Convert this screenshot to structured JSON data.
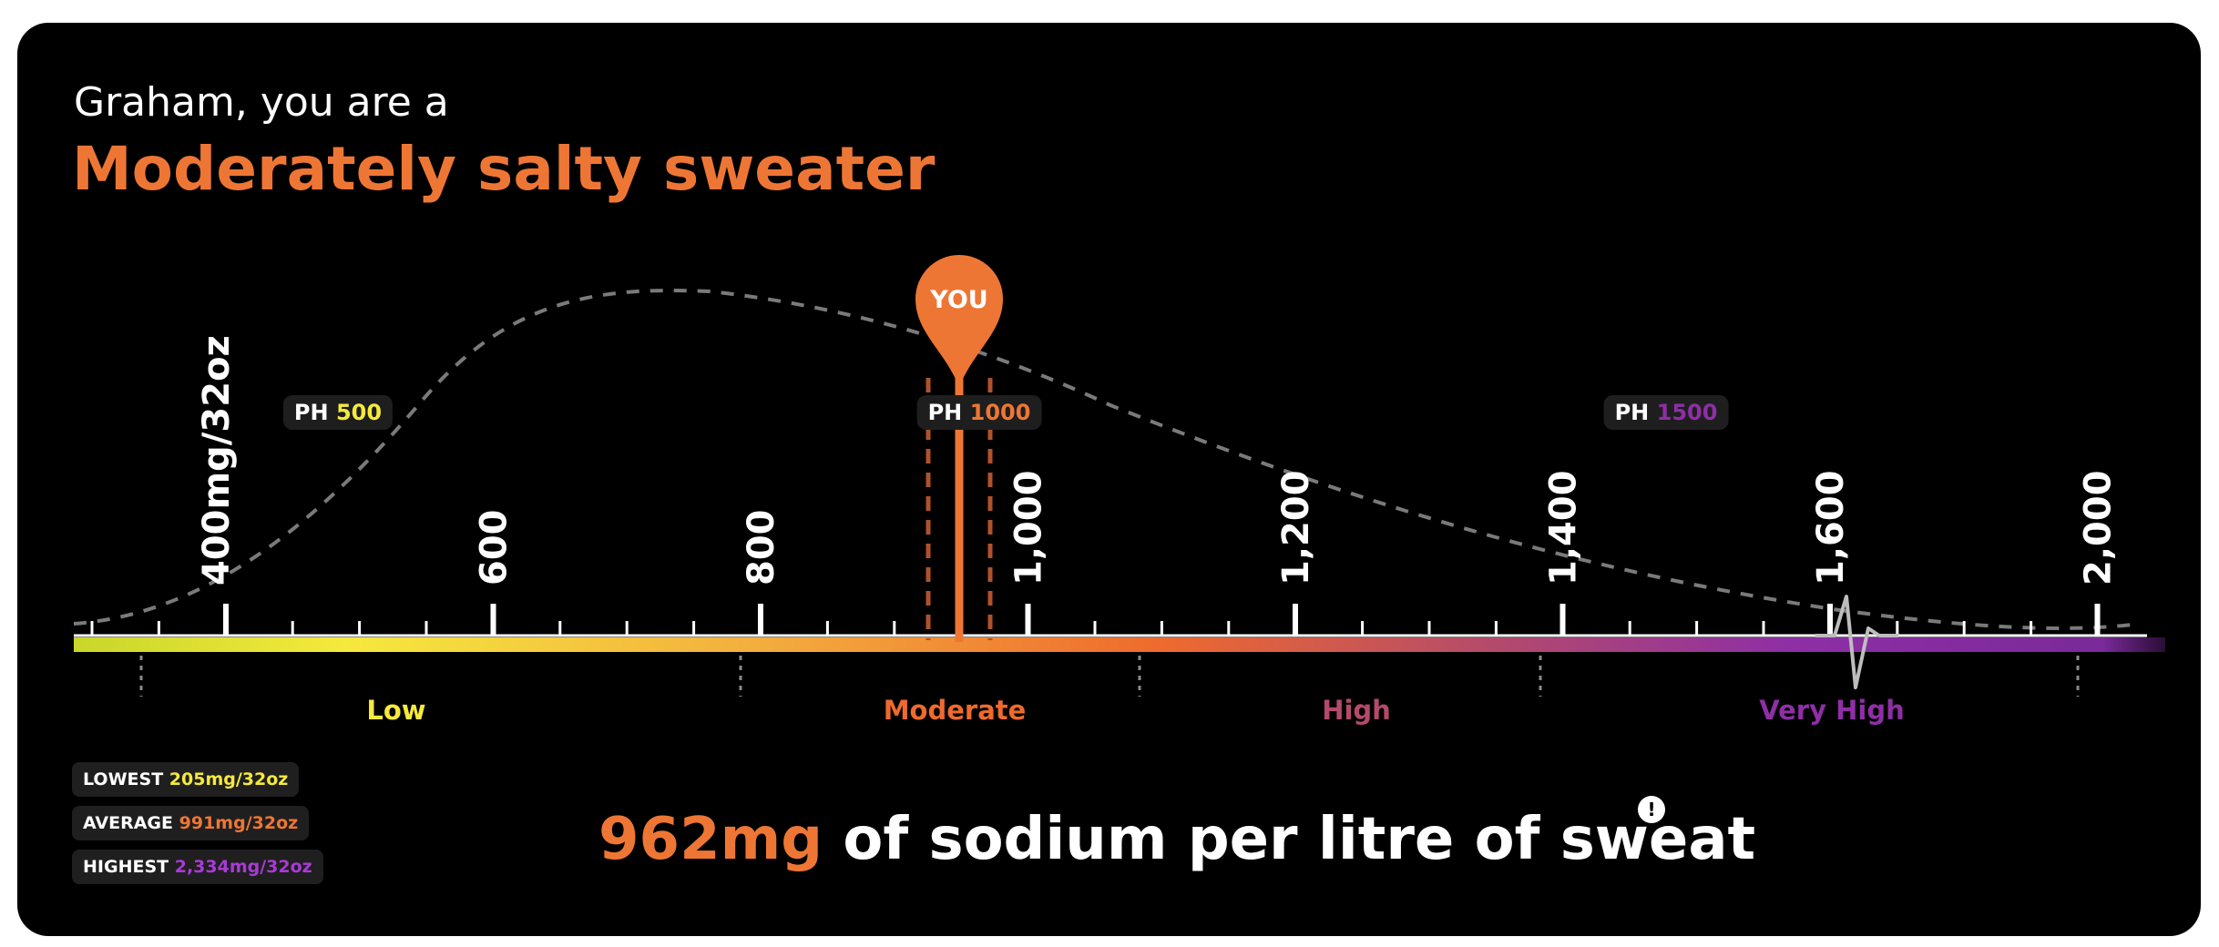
{
  "header": {
    "greeting": "Graham, you are a",
    "headline": "Moderately salty sweater"
  },
  "marker": {
    "label": "YOU",
    "value": 962
  },
  "scale": {
    "unit_label": "400mg/32oz",
    "ticks": [
      {
        "value": 400,
        "label": "400"
      },
      {
        "value": 600,
        "label": "600"
      },
      {
        "value": 800,
        "label": "800"
      },
      {
        "value": 1000,
        "label": "1,000"
      },
      {
        "value": 1200,
        "label": "1,200"
      },
      {
        "value": 1400,
        "label": "1,400"
      },
      {
        "value": 1600,
        "label": "1,600"
      },
      {
        "value": 2000,
        "label": "2,000"
      }
    ],
    "axis_break": "between 1,600 and 2,000"
  },
  "ph_badges": [
    {
      "prefix": "PH",
      "value": "500",
      "color": "#f5e93d"
    },
    {
      "prefix": "PH",
      "value": "1000",
      "color": "#ee7635"
    },
    {
      "prefix": "PH",
      "value": "1500",
      "color": "#8e2fa5"
    }
  ],
  "zones": [
    {
      "label": "Low",
      "color": "#f5e93d"
    },
    {
      "label": "Moderate",
      "color": "#ee6a2e"
    },
    {
      "label": "High",
      "color": "#b34a6c"
    },
    {
      "label": "Very High",
      "color": "#8e2fa5"
    }
  ],
  "stats": [
    {
      "label": "LOWEST",
      "value": "205mg/32oz",
      "color": "#f5e93d"
    },
    {
      "label": "AVERAGE",
      "value": "991mg/32oz",
      "color": "#ee7635"
    },
    {
      "label": "HIGHEST",
      "value": "2,334mg/32oz",
      "color": "#a93ad6"
    }
  ],
  "result": {
    "value": "962mg",
    "text": " of sodium per litre of sweat",
    "info_symbol": "!"
  },
  "colors": {
    "accent": "#ee7635",
    "background": "#000000",
    "gradient": [
      "#c8d62a",
      "#f5e93d",
      "#f3a63c",
      "#ee6a2e",
      "#b34a6c",
      "#8e2fa5",
      "#7a2a9a"
    ]
  }
}
